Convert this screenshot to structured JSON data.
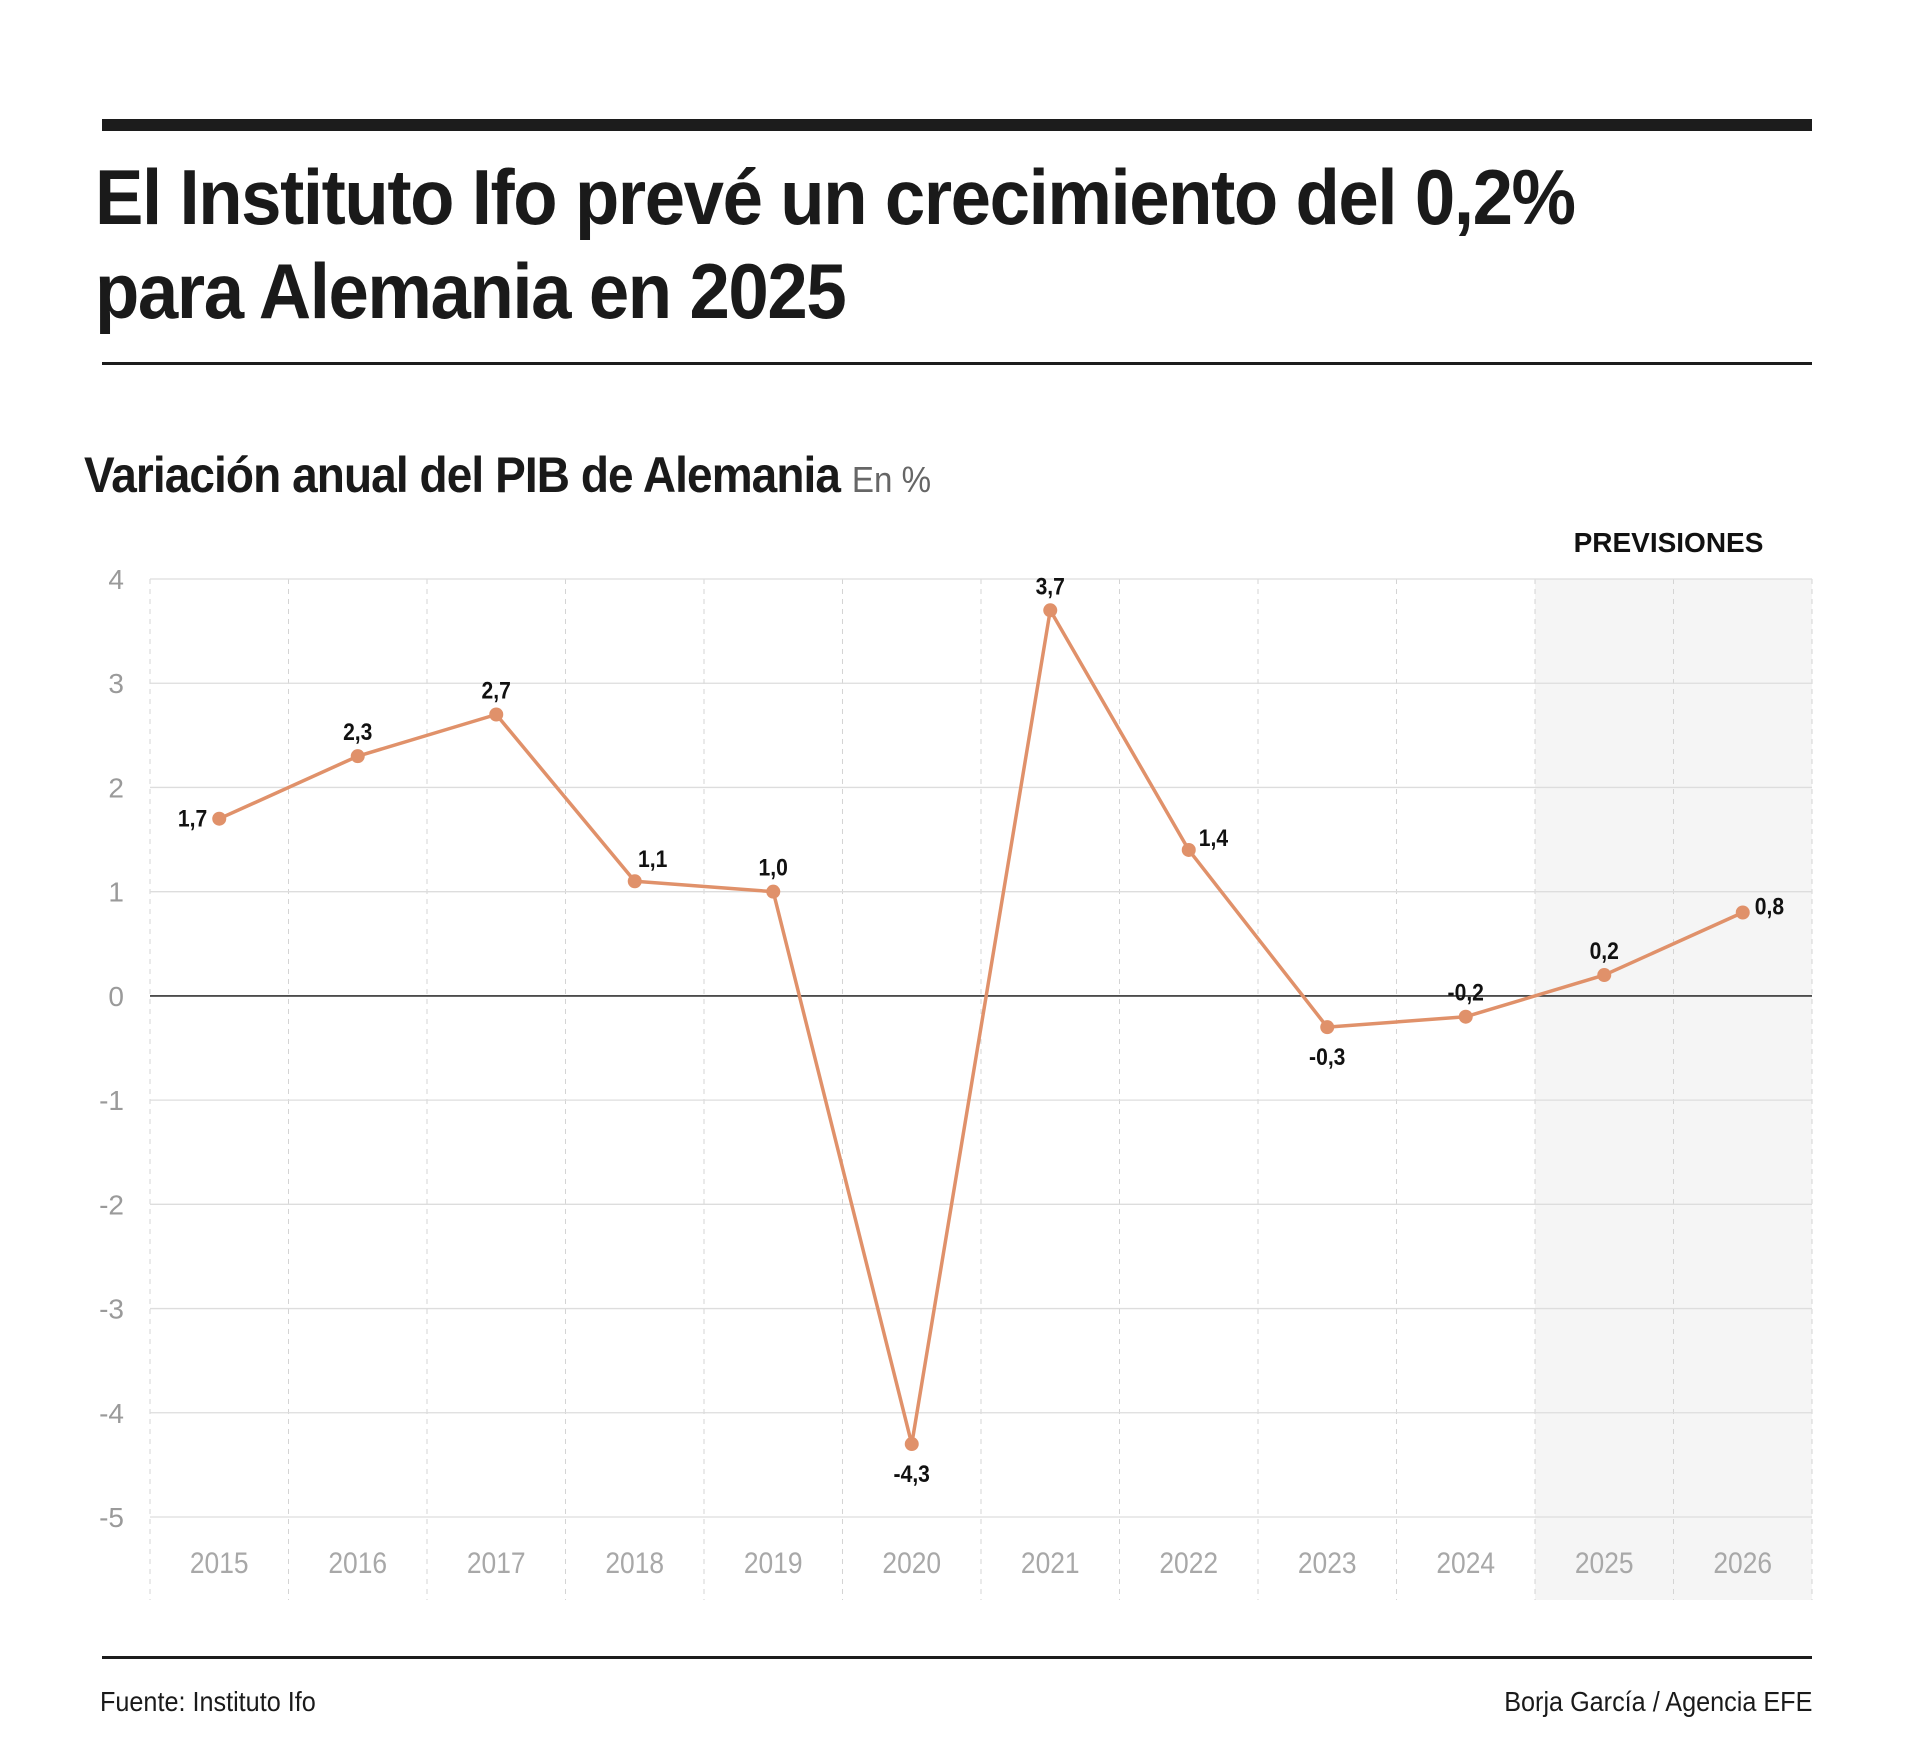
{
  "header": {
    "headline": "El Instituto Ifo prevé un crecimiento del 0,2% para Alemania en 2025"
  },
  "footer": {
    "source": "Fuente: Instituto Ifo",
    "credit": "Borja García / Agencia EFE"
  },
  "colors": {
    "line": "#E0916A",
    "zero_line": "#333333",
    "grid": "#dddddd",
    "forecast_shade": "#f5f5f5"
  },
  "chart_data": {
    "type": "line",
    "title": "Variación anual del PIB de Alemania",
    "unit_label": "En %",
    "xlabel": "",
    "ylabel": "",
    "categories": [
      "2015",
      "2016",
      "2017",
      "2018",
      "2019",
      "2020",
      "2021",
      "2022",
      "2023",
      "2024",
      "2025",
      "2026"
    ],
    "series": [
      {
        "name": "Variación anual del PIB",
        "values": [
          1.7,
          2.3,
          2.7,
          1.1,
          1.0,
          -4.3,
          3.7,
          1.4,
          -0.3,
          -0.2,
          0.2,
          0.8
        ],
        "labels": [
          "1,7",
          "2,3",
          "2,7",
          "1,1",
          "1,0",
          "-4,3",
          "3,7",
          "1,4",
          "-0,3",
          "-0,2",
          "0,2",
          "0,8"
        ]
      }
    ],
    "ylim": [
      -5,
      4
    ],
    "yticks": [
      4,
      3,
      2,
      1,
      0,
      -1,
      -2,
      -3,
      -4,
      -5
    ],
    "ytick_labels": [
      "4",
      "3",
      "2",
      "1",
      "0",
      "-1",
      "-2",
      "-3",
      "-4",
      "-5"
    ],
    "grid": true,
    "forecast": {
      "label": "PREVISIONES",
      "categories": [
        "2025",
        "2026"
      ]
    }
  }
}
